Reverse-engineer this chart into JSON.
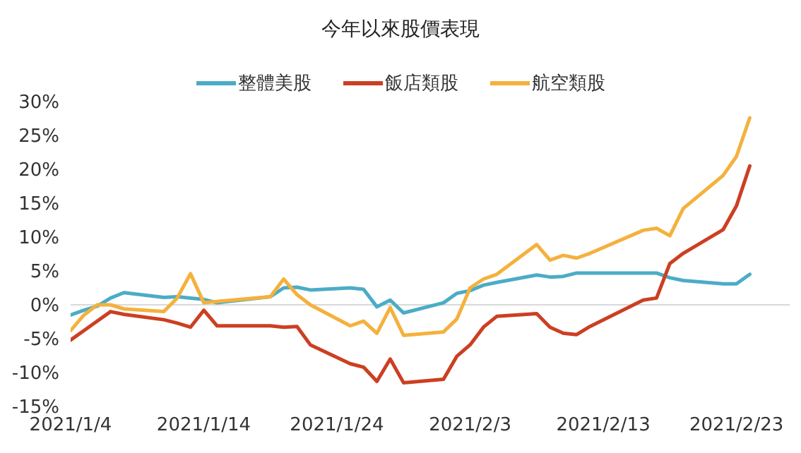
{
  "chart_data": {
    "type": "line",
    "title": "今年以來股價表現",
    "x": [
      "2021-01-04",
      "2021-01-05",
      "2021-01-06",
      "2021-01-07",
      "2021-01-08",
      "2021-01-11",
      "2021-01-12",
      "2021-01-13",
      "2021-01-14",
      "2021-01-15",
      "2021-01-19",
      "2021-01-20",
      "2021-01-21",
      "2021-01-22",
      "2021-01-25",
      "2021-01-26",
      "2021-01-27",
      "2021-01-28",
      "2021-01-29",
      "2021-02-01",
      "2021-02-02",
      "2021-02-03",
      "2021-02-04",
      "2021-02-05",
      "2021-02-08",
      "2021-02-09",
      "2021-02-10",
      "2021-02-11",
      "2021-02-12",
      "2021-02-16",
      "2021-02-17",
      "2021-02-18",
      "2021-02-19",
      "2021-02-22",
      "2021-02-23",
      "2021-02-24"
    ],
    "series": [
      {
        "name": "整體美股",
        "color": "#4bacc6",
        "values": [
          -1.5,
          -0.8,
          -0.2,
          1.0,
          1.8,
          1.1,
          1.2,
          1.0,
          0.8,
          0.3,
          1.2,
          2.5,
          2.6,
          2.2,
          2.5,
          2.3,
          -0.3,
          0.7,
          -1.2,
          0.3,
          1.7,
          2.1,
          2.9,
          3.3,
          4.4,
          4.1,
          4.2,
          4.7,
          4.7,
          4.7,
          4.7,
          4.0,
          3.6,
          3.1,
          3.1,
          4.5
        ]
      },
      {
        "name": "飯店類股",
        "color": "#cc3f22",
        "values": [
          -5.2,
          -3.8,
          -2.4,
          -1.0,
          -1.4,
          -2.2,
          -2.7,
          -3.3,
          -0.8,
          -3.1,
          -3.1,
          -3.3,
          -3.2,
          -5.9,
          -8.7,
          -9.2,
          -11.3,
          -8.0,
          -11.5,
          -11.0,
          -7.6,
          -5.9,
          -3.3,
          -1.7,
          -1.3,
          -3.3,
          -4.2,
          -4.4,
          -3.2,
          0.7,
          1.0,
          6.1,
          7.6,
          11.1,
          14.6,
          20.5
        ]
      },
      {
        "name": "航空類股",
        "color": "#f4b13d",
        "values": [
          -3.8,
          -1.5,
          0.0,
          0.0,
          -0.6,
          -1.0,
          1.0,
          4.6,
          0.3,
          0.5,
          1.2,
          3.8,
          1.5,
          0.0,
          -3.1,
          -2.4,
          -4.2,
          -0.4,
          -4.5,
          -4.0,
          -2.1,
          2.5,
          3.8,
          4.5,
          8.9,
          6.6,
          7.3,
          6.9,
          7.6,
          11.0,
          11.3,
          10.2,
          14.2,
          19.1,
          21.9,
          27.6
        ]
      }
    ],
    "xlim": [
      "2021-01-04",
      "2021-02-27"
    ],
    "xticks": [
      {
        "value": "2021-01-04",
        "label": "2021/1/4"
      },
      {
        "value": "2021-01-14",
        "label": "2021/1/14"
      },
      {
        "value": "2021-01-24",
        "label": "2021/1/24"
      },
      {
        "value": "2021-02-03",
        "label": "2021/2/3"
      },
      {
        "value": "2021-02-13",
        "label": "2021/2/13"
      },
      {
        "value": "2021-02-23",
        "label": "2021/2/23"
      }
    ],
    "ylim": [
      -15,
      30
    ],
    "yticks": [
      {
        "value": -15,
        "label": "-15%"
      },
      {
        "value": -10,
        "label": "-10%"
      },
      {
        "value": -5,
        "label": "-5%"
      },
      {
        "value": 0,
        "label": "0%"
      },
      {
        "value": 5,
        "label": "5%"
      },
      {
        "value": 10,
        "label": "10%"
      },
      {
        "value": 15,
        "label": "15%"
      },
      {
        "value": 20,
        "label": "20%"
      },
      {
        "value": 25,
        "label": "25%"
      },
      {
        "value": 30,
        "label": "30%"
      }
    ],
    "ref_lines": [
      {
        "axis": "y",
        "value": 0,
        "color": "#d9d9d9"
      }
    ],
    "grid": false,
    "legend": "top",
    "marker": "none",
    "line_style": "solid"
  }
}
